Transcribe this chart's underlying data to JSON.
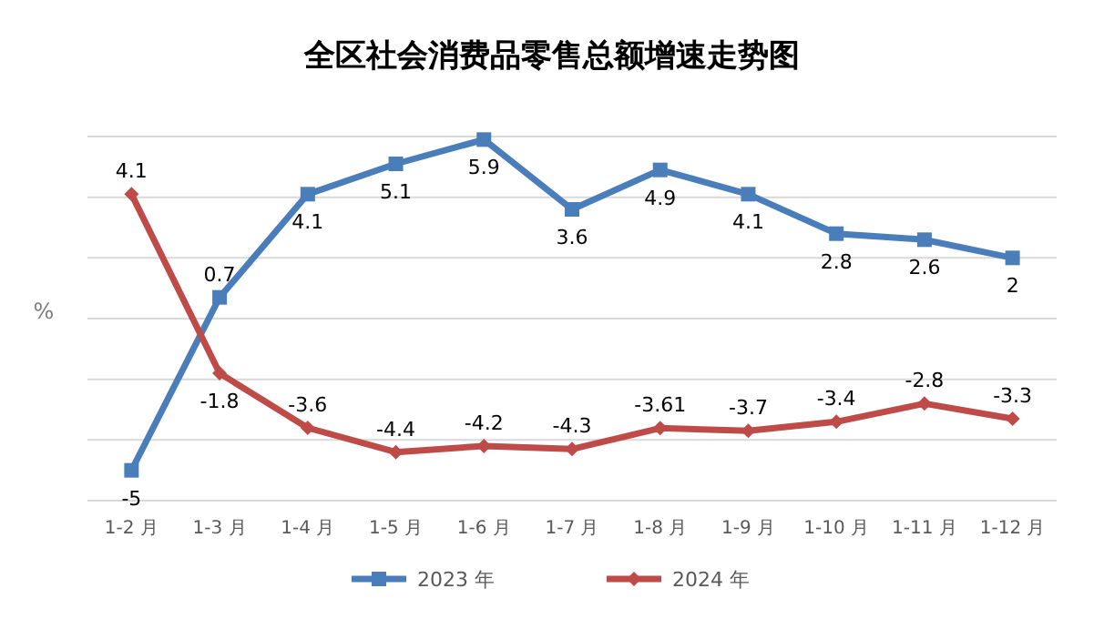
{
  "chart_data": {
    "type": "line",
    "title": "全区社会消费品零售总额增速走势图",
    "ylabel": "%",
    "categories": [
      "1-2 月",
      "1-3 月",
      "1-4 月",
      "1-5 月",
      "1-6 月",
      "1-7 月",
      "1-8 月",
      "1-9 月",
      "1-10 月",
      "1-11 月",
      "1-12 月"
    ],
    "series": [
      {
        "name": "2023 年",
        "color": "#4a7ebb",
        "marker": "square",
        "values": [
          -5,
          0.7,
          4.1,
          5.1,
          5.9,
          3.6,
          4.9,
          4.1,
          2.8,
          2.6,
          2
        ]
      },
      {
        "name": "2024 年",
        "color": "#be4b48",
        "marker": "diamond",
        "values": [
          4.1,
          -1.8,
          -3.6,
          -4.4,
          -4.2,
          -4.3,
          -3.61,
          -3.7,
          -3.4,
          -2.8,
          -3.3
        ]
      }
    ],
    "ylim": [
      -6,
      6
    ],
    "yticks": [
      {
        "value": -6,
        "label": null
      },
      {
        "value": -4,
        "label": null
      },
      {
        "value": -2,
        "label": null
      },
      {
        "value": 0,
        "label": null
      },
      {
        "value": 2,
        "label": null
      },
      {
        "value": 4,
        "label": null
      },
      {
        "value": 6,
        "label": null
      }
    ],
    "tick_labels": "x",
    "grid": "y",
    "legend": "bottom",
    "data_labels": true
  }
}
